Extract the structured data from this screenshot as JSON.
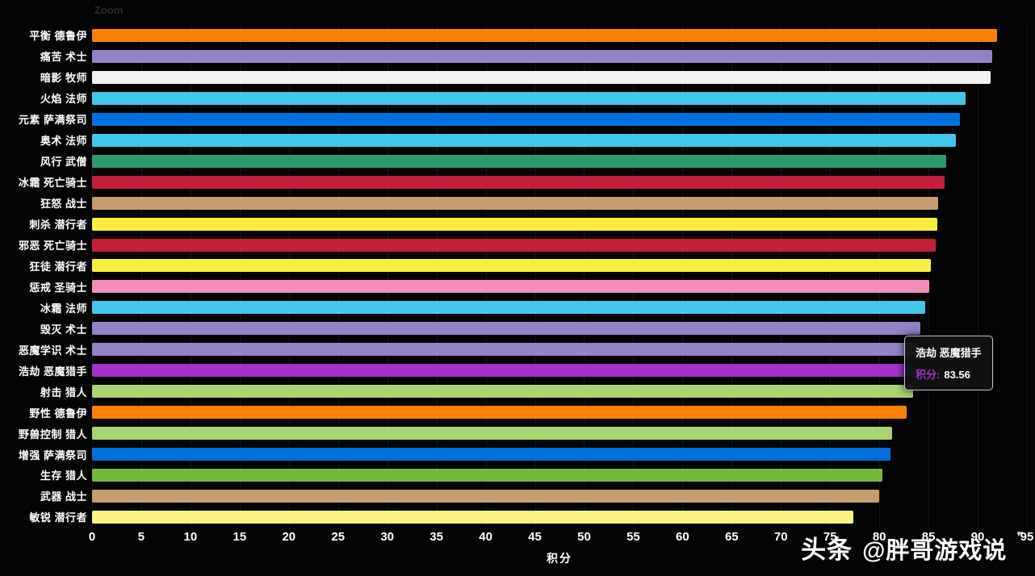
{
  "page": {
    "background": "#040404",
    "zoom_label": "Zoom",
    "watermark": {
      "logo": "头条",
      "handle": "@胖哥游戏说",
      "quote": "❞"
    }
  },
  "chart_data": {
    "type": "bar",
    "orientation": "horizontal",
    "title": "",
    "xlabel": "积分",
    "ylabel": "",
    "xlim": [
      0,
      95
    ],
    "x_ticks": [
      0,
      5,
      10,
      15,
      20,
      25,
      30,
      35,
      40,
      45,
      50,
      55,
      60,
      65,
      70,
      75,
      80,
      85,
      90,
      95
    ],
    "grid": true,
    "legend": false,
    "categories": [
      "平衡 德鲁伊",
      "痛苦 术士",
      "暗影 牧师",
      "火焰 法师",
      "元素 萨满祭司",
      "奥术 法师",
      "风行 武僧",
      "冰霜 死亡骑士",
      "狂怒 战士",
      "刺杀 潜行者",
      "邪恶 死亡骑士",
      "狂徒 潜行者",
      "惩戒 圣骑士",
      "冰霜 法师",
      "毁灭 术士",
      "恶魔学识 术士",
      "浩劫 恶魔猎手",
      "射击 猎人",
      "野性 德鲁伊",
      "野兽控制 猎人",
      "增强 萨满祭司",
      "生存 猎人",
      "武器 战士",
      "敏锐 潜行者"
    ],
    "values": [
      92.0,
      91.5,
      91.3,
      88.8,
      88.2,
      87.8,
      86.8,
      86.6,
      86.0,
      85.9,
      85.7,
      85.2,
      85.1,
      84.7,
      84.2,
      83.9,
      83.56,
      83.4,
      82.8,
      81.3,
      81.1,
      80.3,
      80.0,
      77.4
    ],
    "colors": [
      "#FF8000",
      "#9482C9",
      "#F2F2F2",
      "#40C7EB",
      "#0070DD",
      "#40C7EB",
      "#2E9B6E",
      "#C41E3A",
      "#C79C6E",
      "#F9EF3C",
      "#C41E3A",
      "#F9EF3C",
      "#F48CBA",
      "#40C7EB",
      "#9482C9",
      "#9482C9",
      "#A330C9",
      "#AAD372",
      "#FF8000",
      "#AAD372",
      "#0070DD",
      "#76B939",
      "#C79C6E",
      "#FBF483"
    ]
  },
  "tooltip": {
    "title": "浩劫 恶魔猎手",
    "key": "积分:",
    "value": "83.56",
    "accent_color": "#A330C9"
  }
}
